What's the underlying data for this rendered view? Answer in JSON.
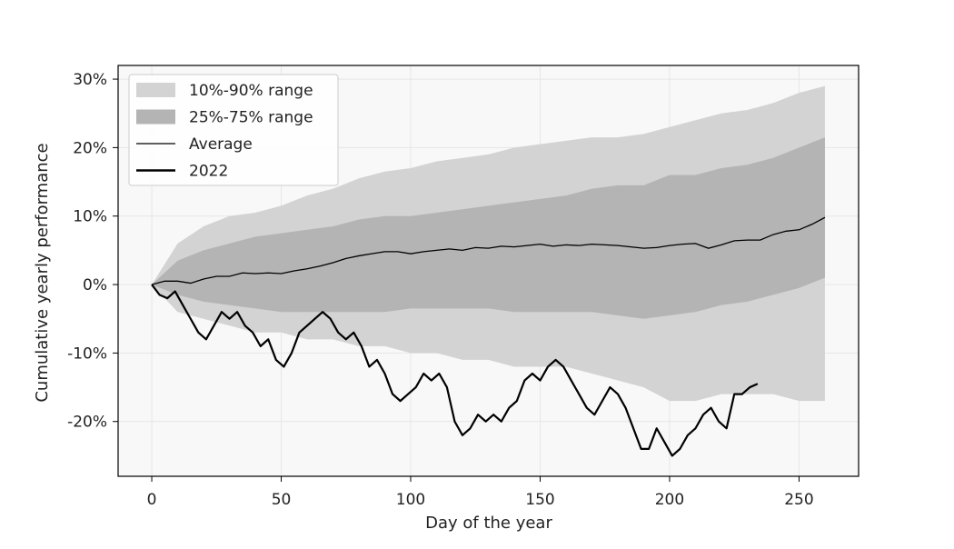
{
  "chart_data": {
    "type": "area",
    "title": "",
    "xlabel": "Day of the year",
    "ylabel": "Cumulative yearly performance",
    "xlim": [
      -13,
      273
    ],
    "ylim": [
      -28,
      32
    ],
    "xticks": [
      0,
      50,
      100,
      150,
      200,
      250
    ],
    "xtick_labels": [
      "0",
      "50",
      "100",
      "150",
      "200",
      "250"
    ],
    "yticks": [
      -20,
      -10,
      0,
      10,
      20,
      30
    ],
    "ytick_labels": [
      "-20%",
      "-10%",
      "0%",
      "10%",
      "20%",
      "30%"
    ],
    "grid": true,
    "legend_position": "upper-left",
    "colors": {
      "band_10_90": "#d3d3d3",
      "band_25_75": "#b4b4b4",
      "average": "#000000",
      "year_2022": "#000000",
      "plot_background": "#f8f8f8",
      "grid": "#e6e6e6"
    },
    "legend": [
      {
        "label": "10%-90% range",
        "kind": "band_10_90"
      },
      {
        "label": "25%-75% range",
        "kind": "band_25_75"
      },
      {
        "label": "Average",
        "kind": "average"
      },
      {
        "label": "2022",
        "kind": "year_2022"
      }
    ],
    "bands": {
      "x": [
        0,
        10,
        20,
        30,
        40,
        50,
        60,
        70,
        80,
        90,
        100,
        110,
        120,
        130,
        140,
        150,
        160,
        170,
        180,
        190,
        200,
        210,
        220,
        230,
        240,
        250,
        260
      ],
      "p10": [
        0,
        -4,
        -5,
        -6,
        -7,
        -7,
        -8,
        -8,
        -9,
        -9,
        -10,
        -10,
        -11,
        -11,
        -12,
        -12,
        -12,
        -13,
        -14,
        -15,
        -17,
        -17,
        -16,
        -16,
        -16,
        -17,
        -17
      ],
      "p25": [
        0,
        -1.5,
        -2.5,
        -3,
        -3.5,
        -4,
        -4,
        -4,
        -4,
        -4,
        -3.5,
        -3.5,
        -3.5,
        -3.5,
        -4,
        -4,
        -4,
        -4,
        -4.5,
        -5,
        -4.5,
        -4,
        -3,
        -2.5,
        -1.5,
        -0.5,
        1
      ],
      "p75": [
        0,
        3.5,
        5,
        6,
        7,
        7.5,
        8,
        8.5,
        9.5,
        10,
        10,
        10.5,
        11,
        11.5,
        12,
        12.5,
        13,
        14,
        14.5,
        14.5,
        16,
        16,
        17,
        17.5,
        18.5,
        20,
        21.5
      ],
      "p90": [
        0,
        6,
        8.5,
        10,
        10.5,
        11.5,
        13,
        14,
        15.5,
        16.5,
        17,
        18,
        18.5,
        19,
        20,
        20.5,
        21,
        21.5,
        21.5,
        22,
        23,
        24,
        25,
        25.5,
        26.5,
        28,
        29
      ]
    },
    "series": [
      {
        "name": "Average",
        "x": [
          0,
          5,
          10,
          15,
          20,
          25,
          30,
          35,
          40,
          45,
          50,
          55,
          60,
          65,
          70,
          75,
          80,
          85,
          90,
          95,
          100,
          105,
          110,
          115,
          120,
          125,
          130,
          135,
          140,
          145,
          150,
          155,
          160,
          165,
          170,
          175,
          180,
          185,
          190,
          195,
          200,
          205,
          210,
          215,
          220,
          225,
          230,
          235,
          240,
          245,
          250,
          255,
          260
        ],
        "y": [
          0,
          0.5,
          0.5,
          0.2,
          0.8,
          1.2,
          1.2,
          1.7,
          1.6,
          1.7,
          1.6,
          2.0,
          2.3,
          2.7,
          3.2,
          3.8,
          4.2,
          4.5,
          4.8,
          4.8,
          4.5,
          4.8,
          5.0,
          5.2,
          5.0,
          5.4,
          5.3,
          5.6,
          5.5,
          5.7,
          5.9,
          5.6,
          5.8,
          5.7,
          5.9,
          5.8,
          5.7,
          5.5,
          5.3,
          5.4,
          5.7,
          5.9,
          6.0,
          5.3,
          5.8,
          6.4,
          6.5,
          6.5,
          7.3,
          7.8,
          8.0,
          8.8,
          9.8
        ]
      },
      {
        "name": "2022",
        "x": [
          0,
          3,
          6,
          9,
          12,
          15,
          18,
          21,
          24,
          27,
          30,
          33,
          36,
          39,
          42,
          45,
          48,
          51,
          54,
          57,
          60,
          63,
          66,
          69,
          72,
          75,
          78,
          81,
          84,
          87,
          90,
          93,
          96,
          99,
          102,
          105,
          108,
          111,
          114,
          117,
          120,
          123,
          126,
          129,
          132,
          135,
          138,
          141,
          144,
          147,
          150,
          153,
          156,
          159,
          162,
          165,
          168,
          171,
          174,
          177,
          180,
          183,
          186,
          189,
          192,
          195,
          198,
          201,
          204,
          207,
          210,
          213,
          216,
          219,
          222,
          225,
          228,
          231,
          234
        ],
        "y": [
          0,
          -1.5,
          -2,
          -1,
          -3,
          -5,
          -7,
          -8,
          -6,
          -4,
          -5,
          -4,
          -6,
          -7,
          -9,
          -8,
          -11,
          -12,
          -10,
          -7,
          -6,
          -5,
          -4,
          -5,
          -7,
          -8,
          -7,
          -9,
          -12,
          -11,
          -13,
          -16,
          -17,
          -16,
          -15,
          -13,
          -14,
          -13,
          -15,
          -20,
          -22,
          -21,
          -19,
          -20,
          -19,
          -20,
          -18,
          -17,
          -14,
          -13,
          -14,
          -12,
          -11,
          -12,
          -14,
          -16,
          -18,
          -19,
          -17,
          -15,
          -16,
          -18,
          -21,
          -24,
          -24,
          -21,
          -23,
          -25,
          -24,
          -22,
          -21,
          -19,
          -18,
          -20,
          -21,
          -16,
          -16,
          -15,
          -14.5
        ]
      }
    ]
  }
}
